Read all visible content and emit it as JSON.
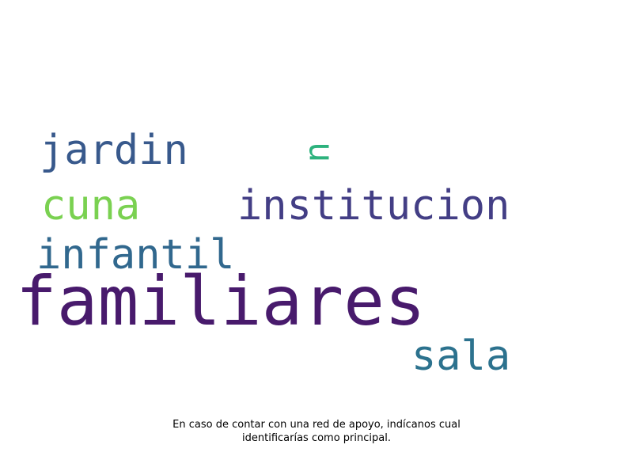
{
  "words": [
    {
      "text": "familiares",
      "color": "#481a6c"
    },
    {
      "text": "institucion",
      "color": "#433e85"
    },
    {
      "text": "jardin",
      "color": "#38598c"
    },
    {
      "text": "infantil",
      "color": "#31688e"
    },
    {
      "text": "sala",
      "color": "#2c728e"
    },
    {
      "text": "cuna",
      "color": "#7ad151"
    },
    {
      "text": "u",
      "color": "#2db27d"
    }
  ],
  "caption": {
    "line1": "En caso de contar con una red de apoyo, indícanos cual",
    "line2": "identificarías como principal."
  }
}
